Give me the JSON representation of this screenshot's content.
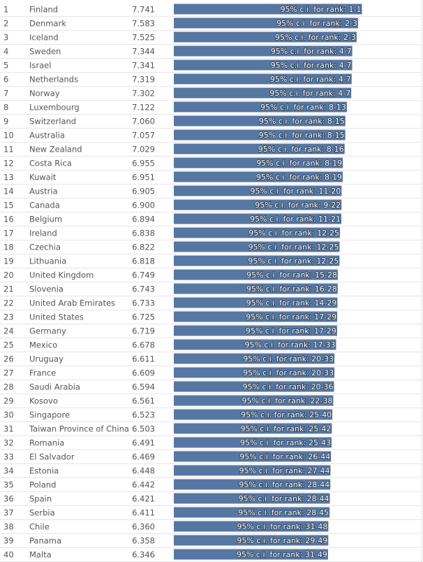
{
  "chart_data": {
    "type": "bar",
    "ranks": [
      1,
      2,
      3,
      4,
      5,
      6,
      7,
      8,
      9,
      10,
      11,
      12,
      13,
      14,
      15,
      16,
      17,
      18,
      19,
      20,
      21,
      22,
      23,
      24,
      25,
      26,
      27,
      28,
      29,
      30,
      31,
      32,
      33,
      34,
      35,
      36,
      37,
      38,
      39,
      40
    ],
    "categories": [
      "Finland",
      "Denmark",
      "Iceland",
      "Sweden",
      "Israel",
      "Netherlands",
      "Norway",
      "Luxembourg",
      "Switzerland",
      "Australia",
      "New Zealand",
      "Costa Rica",
      "Kuwait",
      "Austria",
      "Canada",
      "Belgium",
      "Ireland",
      "Czechia",
      "Lithuania",
      "United Kingdom",
      "Slovenia",
      "United Arab Emirates",
      "United States",
      "Germany",
      "Mexico",
      "Uruguay",
      "France",
      "Saudi Arabia",
      "Kosovo",
      "Singapore",
      "Taiwan Province of China",
      "Romania",
      "El Salvador",
      "Estonia",
      "Poland",
      "Spain",
      "Serbia",
      "Chile",
      "Panama",
      "Malta"
    ],
    "values": [
      7.741,
      7.583,
      7.525,
      7.344,
      7.341,
      7.319,
      7.302,
      7.122,
      7.06,
      7.057,
      7.029,
      6.955,
      6.951,
      6.905,
      6.9,
      6.894,
      6.838,
      6.822,
      6.818,
      6.749,
      6.743,
      6.733,
      6.725,
      6.719,
      6.678,
      6.611,
      6.609,
      6.594,
      6.561,
      6.523,
      6.503,
      6.491,
      6.469,
      6.448,
      6.442,
      6.421,
      6.411,
      6.36,
      6.358,
      6.346
    ],
    "value_labels": [
      "7.741",
      "7.583",
      "7.525",
      "7.344",
      "7.341",
      "7.319",
      "7.302",
      "7.122",
      "7.060",
      "7.057",
      "7.029",
      "6.955",
      "6.951",
      "6.905",
      "6.900",
      "6.894",
      "6.838",
      "6.822",
      "6.818",
      "6.749",
      "6.743",
      "6.733",
      "6.725",
      "6.719",
      "6.678",
      "6.611",
      "6.609",
      "6.594",
      "6.561",
      "6.523",
      "6.503",
      "6.491",
      "6.469",
      "6.448",
      "6.442",
      "6.421",
      "6.411",
      "6.360",
      "6.358",
      "6.346"
    ],
    "annotations": [
      "95% c.i. for rank: 1-1",
      "95% c.i. for rank: 2-3",
      "95% c.i. for rank: 2-3",
      "95% c.i. for rank: 4-7",
      "95% c.i. for rank: 4-7",
      "95% c.i. for rank: 4-7",
      "95% c.i. for rank: 4-7",
      "95% c.i. for rank: 8-13",
      "95% c.i. for rank: 8-15",
      "95% c.i. for rank: 8-15",
      "95% c.i. for rank: 8-16",
      "95% c.i. for rank: 8-19",
      "95% c.i. for rank: 8-19",
      "95% c.i. for rank: 11-20",
      "95% c.i. for rank: 9-22",
      "95% c.i. for rank: 11-21",
      "95% c.i. for rank: 12-25",
      "95% c.i. for rank: 12-25",
      "95% c.i. for rank: 12-25",
      "95% c.i. for rank: 15-28",
      "95% c.i. for rank: 16-28",
      "95% c.i. for rank: 14-29",
      "95% c.i. for rank: 17-29",
      "95% c.i. for rank: 17-29",
      "95% c.i. for rank: 17-33",
      "95% c.i. for rank: 20-33",
      "95% c.i. for rank: 20-33",
      "95% c.i. for rank: 20-36",
      "95% c.i. for rank: 22-38",
      "95% c.i. for rank: 25-40",
      "95% c.i. for rank: 25-42",
      "95% c.i. for rank: 25-43",
      "95% c.i. for rank: 26-44",
      "95% c.i. for rank: 27-44",
      "95% c.i. for rank: 28-44",
      "95% c.i. for rank: 28-44",
      "95% c.i. for rank: 28-45",
      "95% c.i. for rank: 31-48",
      "95% c.i. for rank: 29-49",
      "95% c.i. for rank: 31-49"
    ],
    "color": "#5677a2",
    "xlim": [
      0,
      8.1
    ]
  }
}
